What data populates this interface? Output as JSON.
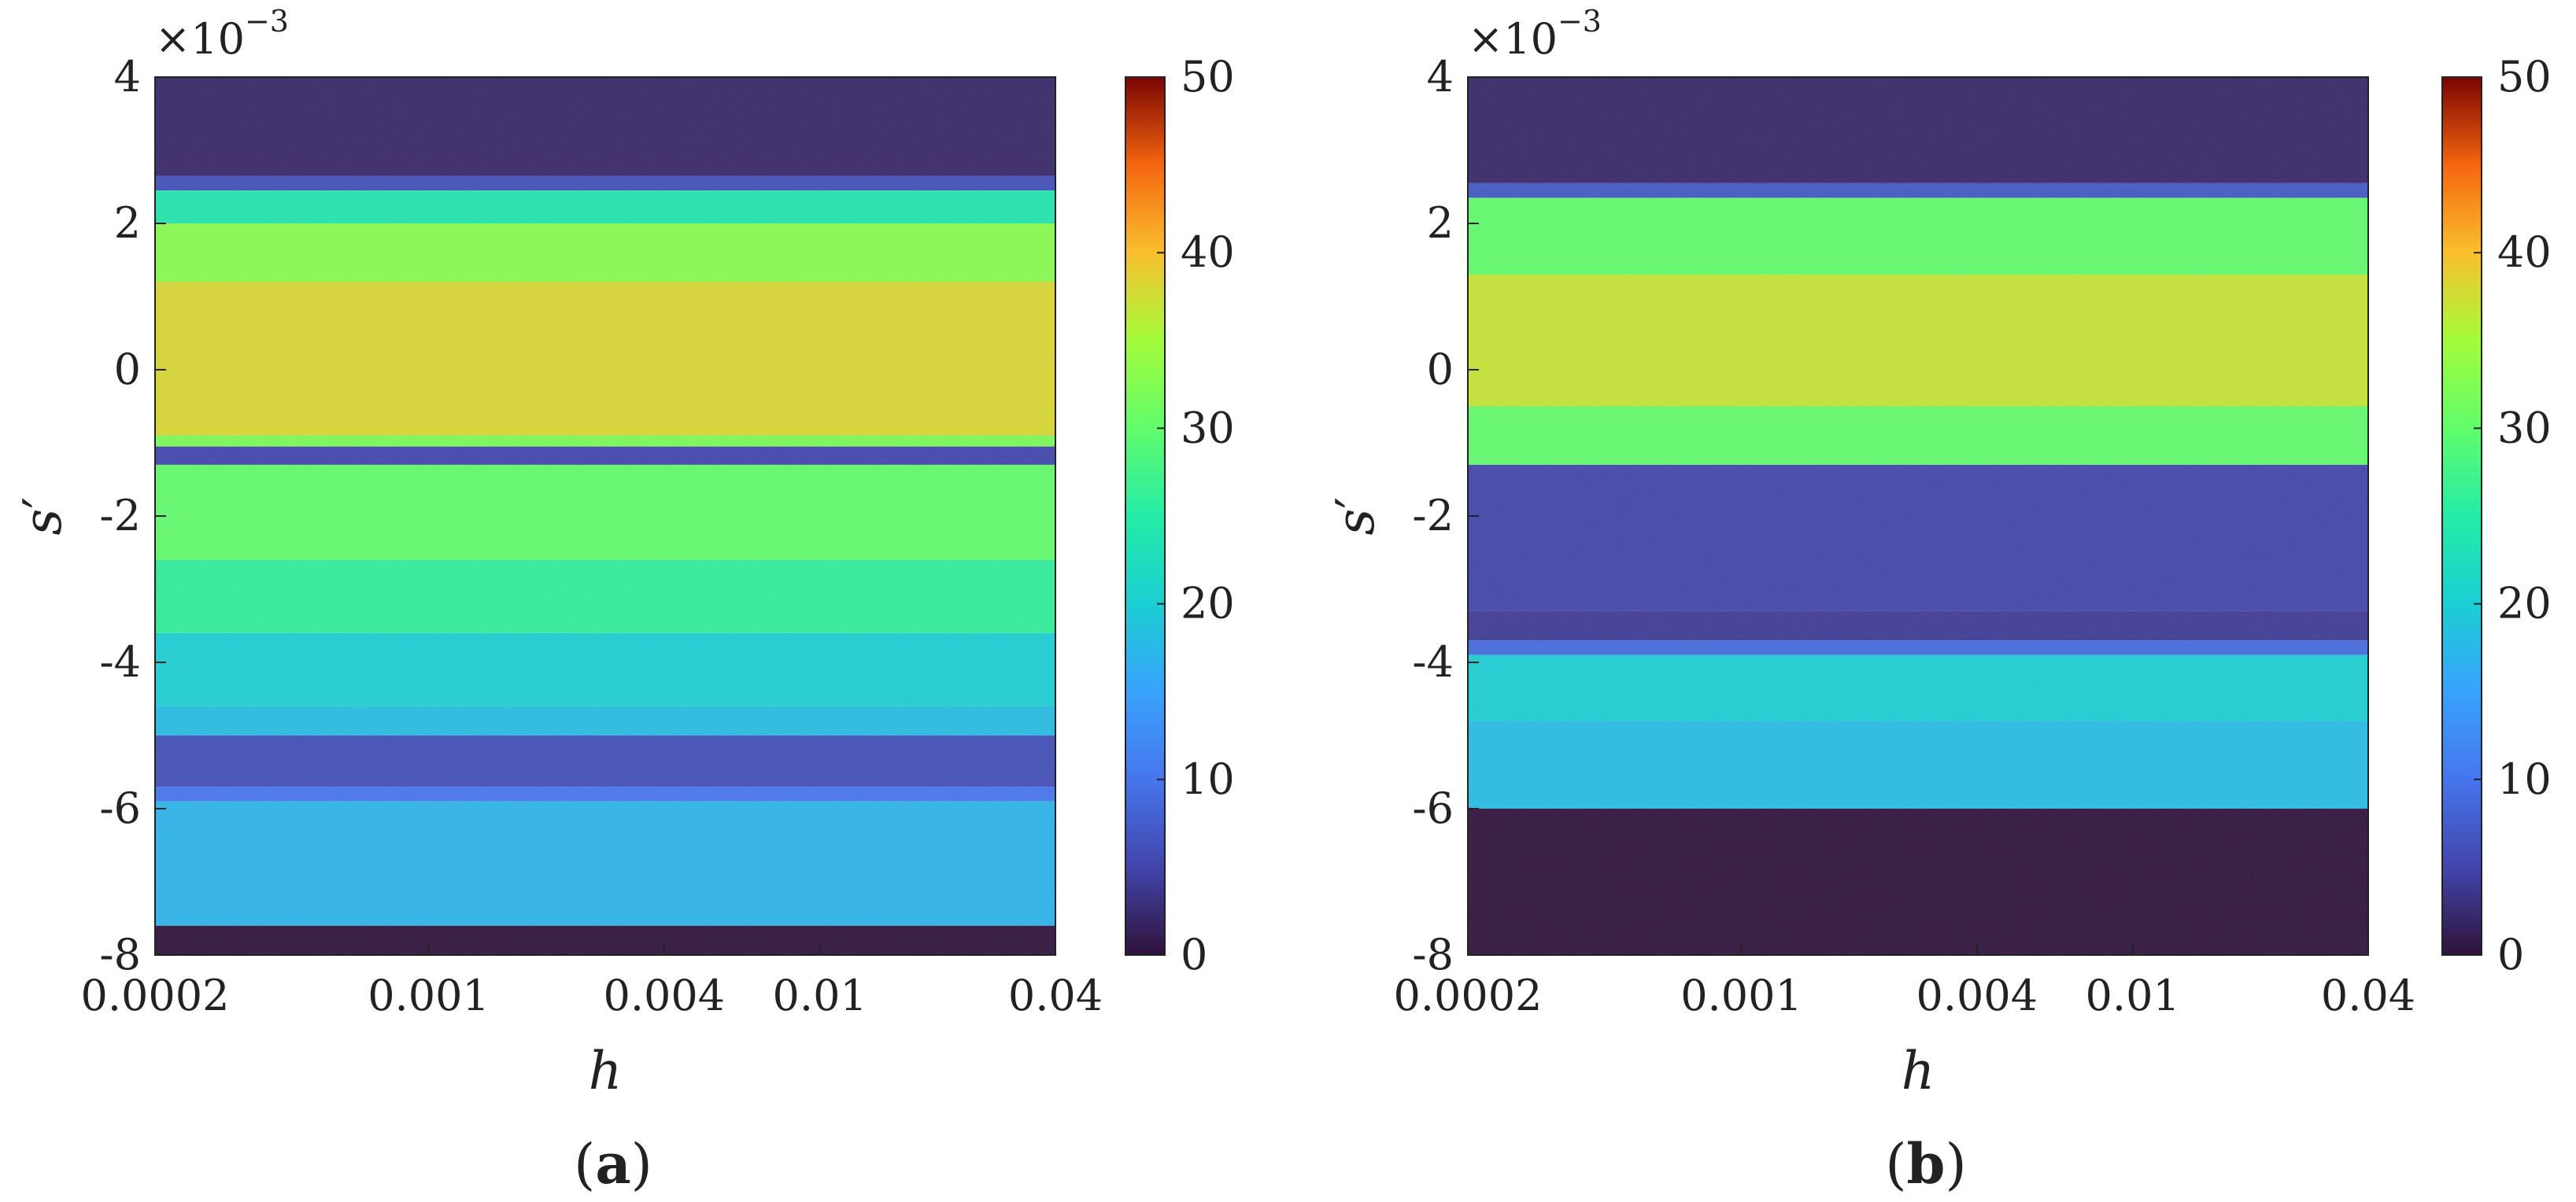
{
  "chart_data": [
    {
      "type": "heatmap",
      "panel_label_open": "(",
      "panel_label_letter": "a",
      "panel_label_close": ")",
      "xlabel": "h",
      "ylabel_base": "s",
      "ylabel_prime": "′",
      "x_scale": "log",
      "xlim": [
        0.0002,
        0.04
      ],
      "x_ticks": [
        0.0002,
        0.001,
        0.004,
        0.01,
        0.04
      ],
      "x_tick_labels": [
        "0.0002",
        "0.001",
        "0.004",
        "0.01",
        "0.04"
      ],
      "ylim": [
        -0.008,
        0.004
      ],
      "y_ticks": [
        4,
        2,
        0,
        -2,
        -4,
        -6,
        -8
      ],
      "y_tick_labels": [
        "4",
        "2",
        "0",
        "-2",
        "-4",
        "-6",
        "-8"
      ],
      "y_multiplier_base": "×10",
      "y_multiplier_exp": "−3",
      "colorbar": {
        "range": [
          0,
          50
        ],
        "ticks": [
          0,
          10,
          20,
          30,
          40,
          50
        ],
        "tick_labels": [
          "0",
          "10",
          "20",
          "30",
          "40",
          "50"
        ],
        "colormap": "turbo"
      },
      "bands": [
        {
          "y_top": 4.0,
          "y_bottom": 2.65,
          "value": 2
        },
        {
          "y_top": 2.65,
          "y_bottom": 2.45,
          "value": 6
        },
        {
          "y_top": 2.45,
          "y_bottom": 2.0,
          "value": 24
        },
        {
          "y_top": 2.0,
          "y_bottom": 1.2,
          "value": 33
        },
        {
          "y_top": 1.2,
          "y_bottom": -0.9,
          "value": 38
        },
        {
          "y_top": -0.9,
          "y_bottom": -1.05,
          "value": 32
        },
        {
          "y_top": -1.05,
          "y_bottom": -1.3,
          "value": 5
        },
        {
          "y_top": -1.3,
          "y_bottom": -2.6,
          "value": 30
        },
        {
          "y_top": -2.6,
          "y_bottom": -3.6,
          "value": 26
        },
        {
          "y_top": -3.6,
          "y_bottom": -4.6,
          "value": 20
        },
        {
          "y_top": -4.6,
          "y_bottom": -5.0,
          "value": 18
        },
        {
          "y_top": -5.0,
          "y_bottom": -5.7,
          "value": 6
        },
        {
          "y_top": -5.7,
          "y_bottom": -5.9,
          "value": 10
        },
        {
          "y_top": -5.9,
          "y_bottom": -7.6,
          "value": 17
        },
        {
          "y_top": -7.6,
          "y_bottom": -8.0,
          "value": 0
        }
      ]
    },
    {
      "type": "heatmap",
      "panel_label_open": "(",
      "panel_label_letter": "b",
      "panel_label_close": ")",
      "xlabel": "h",
      "ylabel_base": "s",
      "ylabel_prime": "′",
      "x_scale": "log",
      "xlim": [
        0.0002,
        0.04
      ],
      "x_ticks": [
        0.0002,
        0.001,
        0.004,
        0.01,
        0.04
      ],
      "x_tick_labels": [
        "0.0002",
        "0.001",
        "0.004",
        "0.01",
        "0.04"
      ],
      "ylim": [
        -0.008,
        0.004
      ],
      "y_ticks": [
        4,
        2,
        0,
        -2,
        -4,
        -6,
        -8
      ],
      "y_tick_labels": [
        "4",
        "2",
        "0",
        "-2",
        "-4",
        "-6",
        "-8"
      ],
      "y_multiplier_base": "×10",
      "y_multiplier_exp": "−3",
      "colorbar": {
        "range": [
          0,
          50
        ],
        "ticks": [
          0,
          10,
          20,
          30,
          40,
          50
        ],
        "tick_labels": [
          "0",
          "10",
          "20",
          "30",
          "40",
          "50"
        ],
        "colormap": "turbo"
      },
      "bands": [
        {
          "y_top": 4.0,
          "y_bottom": 2.55,
          "value": 2
        },
        {
          "y_top": 2.55,
          "y_bottom": 2.35,
          "value": 7
        },
        {
          "y_top": 2.35,
          "y_bottom": 1.3,
          "value": 30
        },
        {
          "y_top": 1.3,
          "y_bottom": -0.5,
          "value": 37
        },
        {
          "y_top": -0.5,
          "y_bottom": -1.3,
          "value": 30
        },
        {
          "y_top": -1.3,
          "y_bottom": -3.3,
          "value": 5
        },
        {
          "y_top": -3.3,
          "y_bottom": -3.7,
          "value": 4
        },
        {
          "y_top": -3.7,
          "y_bottom": -3.9,
          "value": 9
        },
        {
          "y_top": -3.9,
          "y_bottom": -4.8,
          "value": 20
        },
        {
          "y_top": -4.8,
          "y_bottom": -6.0,
          "value": 18
        },
        {
          "y_top": -6.0,
          "y_bottom": -8.0,
          "value": 0
        }
      ]
    }
  ]
}
